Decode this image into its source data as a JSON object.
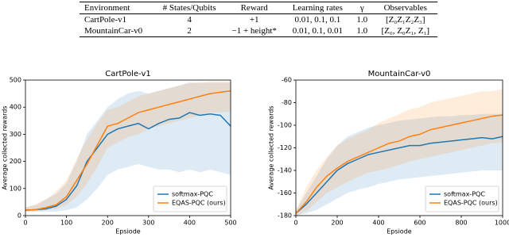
{
  "table": {
    "header": [
      "Environment",
      "# States/Qubits",
      "Reward",
      "Learning rates",
      "γ",
      "Observables"
    ],
    "rows": [
      [
        "CartPole-v1",
        "4",
        "+1",
        "0.01, 0.1, 0.1",
        "1.0",
        "[Z₀Z₁Z₂Z₃]"
      ],
      [
        "MountainCar-v0",
        "2",
        "−1 + height*",
        "0.01, 0.1, 0.01",
        "1.0",
        "[Z₀, Z₀Z₁, Z₁]"
      ]
    ]
  },
  "chart_data": [
    {
      "type": "line",
      "title": "CartPole-v1",
      "x_label": "Epsiode",
      "y_label": "Average collected rewards",
      "x": [
        0,
        25,
        50,
        75,
        100,
        125,
        150,
        175,
        200,
        225,
        250,
        275,
        300,
        325,
        350,
        375,
        400,
        425,
        450,
        475,
        500
      ],
      "xlim": [
        0,
        500
      ],
      "xticks": [
        0,
        100,
        200,
        300,
        400,
        500
      ],
      "ylim": [
        0,
        500
      ],
      "yticks": [
        0,
        100,
        200,
        300,
        400,
        500
      ],
      "legend": "lower right",
      "series": [
        {
          "name": "softmax-PQC",
          "color": "#1f77b4",
          "values": [
            20,
            22,
            25,
            35,
            60,
            110,
            200,
            250,
            300,
            320,
            330,
            340,
            320,
            340,
            355,
            360,
            380,
            370,
            375,
            370,
            330
          ],
          "lower": [
            15,
            15,
            15,
            15,
            20,
            30,
            60,
            100,
            150,
            170,
            180,
            190,
            180,
            170,
            170,
            160,
            170,
            160,
            170,
            160,
            150
          ],
          "upper": [
            30,
            40,
            60,
            80,
            120,
            200,
            300,
            350,
            400,
            430,
            450,
            460,
            450,
            460,
            470,
            480,
            490,
            490,
            490,
            490,
            490
          ]
        },
        {
          "name": "EQAS-PQC (ours)",
          "color": "#ff7f0e",
          "values": [
            20,
            22,
            30,
            40,
            70,
            130,
            190,
            260,
            330,
            340,
            360,
            380,
            390,
            400,
            410,
            420,
            430,
            440,
            450,
            455,
            460
          ],
          "lower": [
            15,
            15,
            20,
            25,
            40,
            70,
            120,
            180,
            250,
            270,
            290,
            300,
            320,
            330,
            340,
            350,
            360,
            370,
            380,
            380,
            385
          ],
          "upper": [
            30,
            40,
            60,
            90,
            130,
            210,
            280,
            340,
            390,
            400,
            420,
            440,
            450,
            460,
            470,
            480,
            490,
            490,
            495,
            495,
            495
          ]
        }
      ]
    },
    {
      "type": "line",
      "title": "MountainCar-v0",
      "x_label": "Epsiode",
      "y_label": "Average collected rewards",
      "x": [
        0,
        50,
        100,
        150,
        200,
        250,
        300,
        350,
        400,
        450,
        500,
        550,
        600,
        650,
        700,
        750,
        800,
        850,
        900,
        950,
        1000
      ],
      "xlim": [
        0,
        1000
      ],
      "xticks": [
        0,
        200,
        400,
        600,
        800,
        1000
      ],
      "ylim": [
        -180,
        -60
      ],
      "yticks": [
        -180,
        -160,
        -140,
        -120,
        -100,
        -80,
        -60
      ],
      "legend": "lower right",
      "series": [
        {
          "name": "softmax-PQC",
          "color": "#1f77b4",
          "values": [
            -178,
            -170,
            -160,
            -150,
            -140,
            -134,
            -130,
            -126,
            -124,
            -122,
            -120,
            -118,
            -118,
            -116,
            -115,
            -114,
            -113,
            -112,
            -111,
            -112,
            -110
          ],
          "lower": [
            -180,
            -178,
            -175,
            -170,
            -165,
            -160,
            -157,
            -155,
            -152,
            -150,
            -148,
            -147,
            -146,
            -145,
            -144,
            -143,
            -142,
            -141,
            -140,
            -140,
            -140
          ],
          "upper": [
            -176,
            -160,
            -145,
            -130,
            -118,
            -110,
            -106,
            -102,
            -100,
            -98,
            -96,
            -95,
            -94,
            -93,
            -92,
            -92,
            -91,
            -91,
            -90,
            -90,
            -90
          ]
        },
        {
          "name": "EQAS-PQC (ours)",
          "color": "#ff7f0e",
          "values": [
            -178,
            -168,
            -155,
            -145,
            -138,
            -132,
            -128,
            -124,
            -120,
            -116,
            -114,
            -110,
            -108,
            -104,
            -102,
            -100,
            -98,
            -96,
            -94,
            -92,
            -91
          ],
          "lower": [
            -180,
            -176,
            -168,
            -160,
            -155,
            -150,
            -146,
            -142,
            -140,
            -138,
            -135,
            -132,
            -130,
            -128,
            -126,
            -124,
            -122,
            -120,
            -118,
            -116,
            -115
          ],
          "upper": [
            -175,
            -155,
            -140,
            -128,
            -118,
            -112,
            -108,
            -104,
            -98,
            -94,
            -90,
            -86,
            -84,
            -80,
            -78,
            -76,
            -74,
            -72,
            -70,
            -70,
            -68
          ]
        }
      ]
    }
  ]
}
